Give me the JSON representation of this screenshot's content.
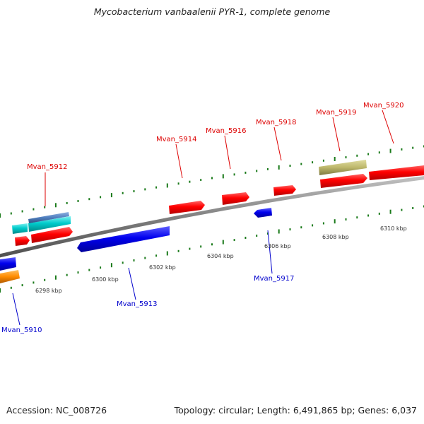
{
  "title": "Mycobacterium vanbaalenii PYR-1, complete genome",
  "footer": {
    "accession": "Accession: NC_008726",
    "summary": "Topology: circular; Length: 6,491,865 bp; Genes: 6,037"
  },
  "colors": {
    "forward_cds": "#ff0000",
    "reverse_cds": "#0000ee",
    "forward_label": "#dd0000",
    "reverse_label": "#0000cc",
    "rna_cyan": "#00cccc",
    "steelblue": "#4f7fbf",
    "khaki": "#bdb76b",
    "orange": "#ff8c00",
    "backbone": "#8a8a8a",
    "tick": "#1a7a1a"
  },
  "scale_labels": [
    "6298 kbp",
    "6300 kbp",
    "6302 kbp",
    "6304 kbp",
    "6306 kbp",
    "6308 kbp",
    "6310 kbp"
  ],
  "gene_labels": [
    {
      "text": "Mvan_5912",
      "strand": "forward"
    },
    {
      "text": "Mvan_5914",
      "strand": "forward"
    },
    {
      "text": "Mvan_5916",
      "strand": "forward"
    },
    {
      "text": "Mvan_5918",
      "strand": "forward"
    },
    {
      "text": "Mvan_5919",
      "strand": "forward"
    },
    {
      "text": "Mvan_5920",
      "strand": "forward"
    },
    {
      "text": "Mvan_5910",
      "strand": "reverse"
    },
    {
      "text": "Mvan_5913",
      "strand": "reverse"
    },
    {
      "text": "Mvan_5917",
      "strand": "reverse"
    }
  ]
}
